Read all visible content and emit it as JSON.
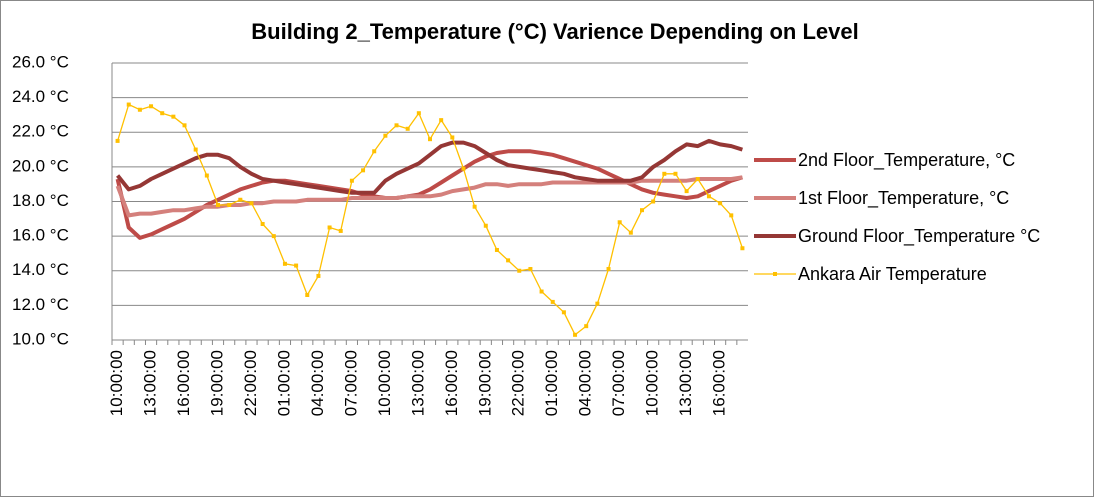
{
  "chart_data": {
    "type": "line",
    "title": "Building 2_Temperature (°C) Varience Depending on Level",
    "categories": [
      "10:00:00",
      null,
      null,
      "13:00:00",
      null,
      null,
      "16:00:00",
      null,
      null,
      "19:00:00",
      null,
      null,
      "22:00:00",
      null,
      null,
      "01:00:00",
      null,
      null,
      "04:00:00",
      null,
      null,
      "07:00:00",
      null,
      null,
      "10:00:00",
      null,
      null,
      "13:00:00",
      null,
      null,
      "16:00:00",
      null,
      null,
      "19:00:00",
      null,
      null,
      "22:00:00",
      null,
      null,
      "01:00:00",
      null,
      null,
      "04:00:00",
      null,
      null,
      "07:00:00",
      null,
      null,
      "10:00:00",
      null,
      null,
      "13:00:00",
      null,
      null,
      "16:00:00",
      null,
      null
    ],
    "ylim": [
      10,
      26
    ],
    "yticks": [
      {
        "value": 10,
        "label": "10.0 °C"
      },
      {
        "value": 12,
        "label": "12.0 °C"
      },
      {
        "value": 14,
        "label": "14.0 °C"
      },
      {
        "value": 16,
        "label": "16.0 °C"
      },
      {
        "value": 18,
        "label": "18.0 °C"
      },
      {
        "value": 20,
        "label": "20.0 °C"
      },
      {
        "value": 22,
        "label": "22.0 °C"
      },
      {
        "value": 24,
        "label": "24.0 °C"
      },
      {
        "value": 26,
        "label": "26.0 °C"
      }
    ],
    "grid": true,
    "legend": "right",
    "series": [
      {
        "name": "2nd Floor_Temperature, °C",
        "color": "#be4b48",
        "width": 4,
        "values": [
          19.3,
          16.5,
          15.9,
          16.1,
          16.4,
          16.7,
          17.0,
          17.4,
          17.8,
          18.1,
          18.4,
          18.7,
          18.9,
          19.1,
          19.2,
          19.2,
          19.1,
          19.0,
          18.9,
          18.8,
          18.7,
          18.6,
          18.4,
          18.3,
          18.2,
          18.2,
          18.3,
          18.4,
          18.7,
          19.1,
          19.5,
          19.9,
          20.3,
          20.6,
          20.8,
          20.9,
          20.9,
          20.9,
          20.8,
          20.7,
          20.5,
          20.3,
          20.1,
          19.9,
          19.6,
          19.3,
          19.0,
          18.7,
          18.5,
          18.4,
          18.3,
          18.2,
          18.3,
          18.6,
          18.9,
          19.2,
          19.4
        ]
      },
      {
        "name": "1st Floor_Temperature, °C",
        "color": "#d4807c",
        "width": 4,
        "values": [
          18.9,
          17.2,
          17.3,
          17.3,
          17.4,
          17.5,
          17.5,
          17.6,
          17.7,
          17.7,
          17.8,
          17.8,
          17.9,
          17.9,
          18.0,
          18.0,
          18.0,
          18.1,
          18.1,
          18.1,
          18.1,
          18.2,
          18.2,
          18.2,
          18.2,
          18.2,
          18.3,
          18.3,
          18.3,
          18.4,
          18.6,
          18.7,
          18.8,
          19.0,
          19.0,
          18.9,
          19.0,
          19.0,
          19.0,
          19.1,
          19.1,
          19.1,
          19.1,
          19.1,
          19.1,
          19.1,
          19.1,
          19.2,
          19.2,
          19.2,
          19.2,
          19.2,
          19.3,
          19.3,
          19.3,
          19.3,
          19.4
        ]
      },
      {
        "name": "Ground Floor_Temperature °C",
        "color": "#953735",
        "width": 4,
        "values": [
          19.5,
          18.7,
          18.9,
          19.3,
          19.6,
          19.9,
          20.2,
          20.5,
          20.7,
          20.7,
          20.5,
          20.0,
          19.6,
          19.3,
          19.2,
          19.1,
          19.0,
          18.9,
          18.8,
          18.7,
          18.6,
          18.5,
          18.5,
          18.5,
          19.2,
          19.6,
          19.9,
          20.2,
          20.7,
          21.2,
          21.4,
          21.4,
          21.2,
          20.8,
          20.4,
          20.1,
          20.0,
          19.9,
          19.8,
          19.7,
          19.6,
          19.4,
          19.3,
          19.2,
          19.2,
          19.2,
          19.2,
          19.4,
          20.0,
          20.4,
          20.9,
          21.3,
          21.2,
          21.5,
          21.3,
          21.2,
          21.0
        ]
      },
      {
        "name": "Ankara Air Temperature",
        "color": "#ffc000",
        "width": 1.3,
        "marker": true,
        "values": [
          21.5,
          23.6,
          23.3,
          23.5,
          23.1,
          22.9,
          22.4,
          21.0,
          19.5,
          17.8,
          17.8,
          18.1,
          17.9,
          16.7,
          16.0,
          14.4,
          14.3,
          12.6,
          13.7,
          16.5,
          16.3,
          19.2,
          19.8,
          20.9,
          21.8,
          22.4,
          22.2,
          23.1,
          21.6,
          22.7,
          21.7,
          19.9,
          17.7,
          16.6,
          15.2,
          14.6,
          14.0,
          14.1,
          12.8,
          12.2,
          11.6,
          10.3,
          10.8,
          12.1,
          14.1,
          16.8,
          16.2,
          17.5,
          18.0,
          19.6,
          19.6,
          18.6,
          19.3,
          18.3,
          17.9,
          17.2,
          15.3
        ]
      }
    ]
  }
}
